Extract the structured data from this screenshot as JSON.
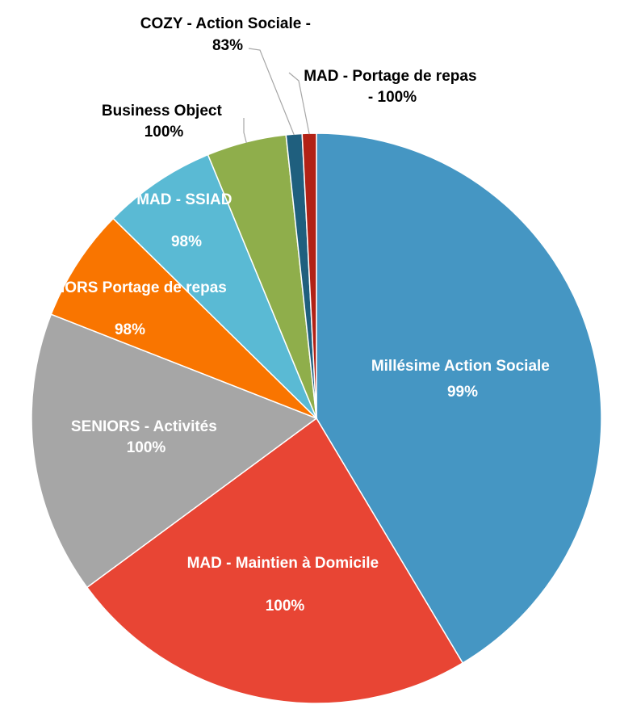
{
  "chart_data": {
    "type": "pie",
    "title": "",
    "slices": [
      {
        "label": "Millésime Action Sociale",
        "pct_label": "99%",
        "value": 41.3,
        "color": "#4596c3"
      },
      {
        "label": "MAD - Maintien à Domicile",
        "pct_label": "100%",
        "value": 23.4,
        "color": "#e84534"
      },
      {
        "label": "SENIORS - Activités",
        "pct_label": "100%",
        "value": 16.0,
        "color": "#a6a6a6"
      },
      {
        "label": "SENIORS Portage de repas",
        "pct_label": "98%",
        "value": 6.4,
        "color": "#f97500"
      },
      {
        "label": "MAD - SSIAD",
        "pct_label": "98%",
        "value": 6.4,
        "color": "#5abad4"
      },
      {
        "label": "Business Object",
        "pct_label": "100%",
        "value": 4.5,
        "color": "#8fae4b"
      },
      {
        "label": "COZY - Action Sociale -",
        "pct_label": "83%",
        "value": 0.9,
        "color": "#1f5f7e"
      },
      {
        "label": "MAD - Portage de repas",
        "pct_label": "- 100%",
        "value": 0.8,
        "color": "#b22216"
      }
    ],
    "legend": "none"
  }
}
